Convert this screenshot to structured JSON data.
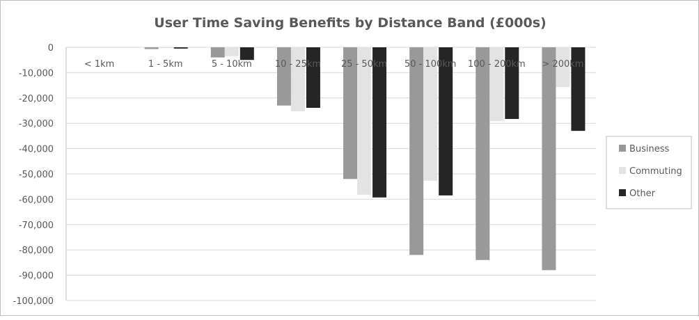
{
  "chart_data": {
    "type": "bar",
    "title": "User Time Saving Benefits by Distance Band (£000s)",
    "xlabel": "",
    "ylabel": "",
    "categories": [
      "< 1km",
      "1 - 5km",
      "5 - 10km",
      "10 - 25km",
      "25 - 50km",
      "50 - 100km",
      "100 - 200km",
      "> 200km"
    ],
    "series": [
      {
        "name": "Business",
        "color": "#999999",
        "values": [
          0,
          -700,
          -4000,
          -23000,
          -52000,
          -82000,
          -84000,
          -88000
        ]
      },
      {
        "name": "Commuting",
        "color": "#e3e3e3",
        "values": [
          0,
          -300,
          -3500,
          -25300,
          -58200,
          -52700,
          -29100,
          -15700
        ]
      },
      {
        "name": "Other",
        "color": "#252525",
        "values": [
          0,
          -500,
          -5000,
          -23900,
          -59300,
          -58500,
          -28300,
          -33000
        ]
      }
    ],
    "ylim": [
      -100000,
      0
    ],
    "yticks": [
      "0",
      "-10,000",
      "-20,000",
      "-30,000",
      "-40,000",
      "-50,000",
      "-60,000",
      "-70,000",
      "-80,000",
      "-90,000",
      "-100,000"
    ],
    "ytick_values": [
      0,
      -10000,
      -20000,
      -30000,
      -40000,
      -50000,
      -60000,
      -70000,
      -80000,
      -90000,
      -100000
    ],
    "grid": true,
    "legend": "right"
  }
}
